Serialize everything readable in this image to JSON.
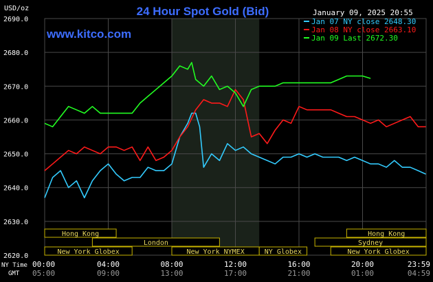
{
  "header": {
    "title": "24 Hour Spot Gold (Bid)",
    "unit": "USD/oz",
    "datetime": "January 09, 2025 20:55",
    "watermark": "www.kitco.com"
  },
  "colors": {
    "background": "#000000",
    "grid": "#4a4a4a",
    "axis_text": "#ffffff",
    "title": "#3d6dff",
    "jan07": "#33ccff",
    "jan08": "#ff1a1a",
    "jan09": "#22ff22",
    "session_fill": "#1a221a",
    "session_border": "#c8b400",
    "session_text": "#e8d860"
  },
  "legend": [
    {
      "label": "Jan 07 NY close 2648.30",
      "color": "#33ccff"
    },
    {
      "label": "Jan 08 NY close 2663.10",
      "color": "#ff1a1a"
    },
    {
      "label": "Jan 09 Last 2672.30",
      "color": "#22ff22"
    }
  ],
  "sessions": [
    {
      "label": "Hong Kong",
      "start": 0,
      "end": 4.5
    },
    {
      "label": "London",
      "start": 3,
      "end": 11
    },
    {
      "label": "New York Globex",
      "start": 0,
      "end": 5.5
    },
    {
      "label": "New York NYMEX",
      "start": 8,
      "end": 13.5
    },
    {
      "label": "NY Globex",
      "start": 13.5,
      "end": 16.5
    },
    {
      "label": "Hong Kong",
      "start": 19,
      "end": 24
    },
    {
      "label": "Sydney",
      "start": 17,
      "end": 24
    },
    {
      "label": "New York Globex",
      "start": 18,
      "end": 24
    }
  ],
  "row_labels": {
    "ny_time": "NY Time",
    "gmt": "GMT"
  },
  "chart_data": {
    "type": "line",
    "title": "24 Hour Spot Gold (Bid)",
    "ylabel": "USD/oz",
    "ylim": [
      2620,
      2690
    ],
    "yticks": [
      "2690.0",
      "2680.0",
      "2670.0",
      "2660.0",
      "2650.0",
      "2640.0",
      "2630.0",
      "2620.0"
    ],
    "xlim": [
      0,
      24
    ],
    "xticks_ny": [
      "00:00",
      "04:00",
      "08:00",
      "12:00",
      "16:00",
      "20:00",
      "23:59"
    ],
    "xticks_gmt": [
      "05:00",
      "09:00",
      "13:00",
      "17:00",
      "21:00",
      "01:00",
      "04:59"
    ],
    "shaded_range": [
      8,
      13.5
    ],
    "grid": true,
    "legend_position": "top-right",
    "series": [
      {
        "name": "Jan 07 NY close 2648.30",
        "color": "#33ccff",
        "x": [
          0,
          0.5,
          1,
          1.5,
          2,
          2.5,
          3,
          3.5,
          4,
          4.5,
          5,
          5.5,
          6,
          6.5,
          7,
          7.5,
          8,
          8.5,
          9,
          9.25,
          9.5,
          9.75,
          10,
          10.5,
          11,
          11.5,
          12,
          12.5,
          13,
          13.5,
          14,
          14.5,
          15,
          15.5,
          16,
          16.5,
          17,
          17.5,
          18,
          18.5,
          19,
          19.5,
          20,
          20.5,
          21,
          21.5,
          22,
          22.5,
          23,
          23.5,
          23.98
        ],
        "y": [
          2637,
          2643,
          2645,
          2640,
          2642,
          2637,
          2642,
          2645,
          2647,
          2644,
          2642,
          2643,
          2643,
          2646,
          2645,
          2645,
          2647,
          2655,
          2659,
          2662,
          2662,
          2658,
          2646,
          2650,
          2648,
          2653,
          2651,
          2652,
          2650,
          2649,
          2648,
          2647,
          2649,
          2649,
          2650,
          2649,
          2650,
          2649,
          2649,
          2649,
          2648,
          2649,
          2648,
          2647,
          2647,
          2646,
          2648,
          2646,
          2646,
          2645,
          2644
        ]
      },
      {
        "name": "Jan 08 NY close 2663.10",
        "color": "#ff1a1a",
        "x": [
          0,
          0.5,
          1,
          1.5,
          2,
          2.5,
          3,
          3.5,
          4,
          4.5,
          5,
          5.5,
          6,
          6.5,
          7,
          7.5,
          8,
          8.5,
          9,
          9.5,
          10,
          10.5,
          11,
          11.5,
          12,
          12.5,
          13,
          13.5,
          14,
          14.5,
          15,
          15.5,
          16,
          16.5,
          17,
          17.5,
          18,
          18.5,
          19,
          19.5,
          20,
          20.5,
          21,
          21.5,
          22,
          22.5,
          23,
          23.5,
          23.98
        ],
        "y": [
          2645,
          2647,
          2649,
          2651,
          2650,
          2652,
          2651,
          2650,
          2652,
          2652,
          2651,
          2652,
          2648,
          2652,
          2648,
          2649,
          2651,
          2655,
          2658,
          2663,
          2666,
          2665,
          2665,
          2664,
          2669,
          2666,
          2655,
          2656,
          2653,
          2657,
          2660,
          2659,
          2664,
          2663,
          2663,
          2663,
          2663,
          2662,
          2661,
          2661,
          2660,
          2659,
          2660,
          2658,
          2659,
          2660,
          2661,
          2658,
          2658
        ]
      },
      {
        "name": "Jan 09 Last 2672.30",
        "color": "#22ff22",
        "x": [
          0,
          0.5,
          1,
          1.5,
          2,
          2.5,
          3,
          3.5,
          4,
          4.5,
          5,
          5.5,
          6,
          6.5,
          7,
          7.5,
          8,
          8.5,
          9,
          9.25,
          9.5,
          10,
          10.5,
          11,
          11.5,
          12,
          12.5,
          13,
          13.5,
          14,
          14.5,
          15,
          15.5,
          16,
          16.5,
          17,
          17.5,
          18,
          18.5,
          19,
          19.5,
          20,
          20.5
        ],
        "y": [
          2659,
          2658,
          2661,
          2664,
          2663,
          2662,
          2664,
          2662,
          2662,
          2662,
          2662,
          2662,
          2665,
          2667,
          2669,
          2671,
          2673,
          2676,
          2675,
          2677,
          2672,
          2670,
          2673,
          2669,
          2670,
          2668,
          2664,
          2669,
          2670,
          2670,
          2670,
          2671,
          2671,
          2671,
          2671,
          2671,
          2671,
          2671,
          2672,
          2673,
          2673,
          2673,
          2672.3
        ]
      }
    ]
  }
}
